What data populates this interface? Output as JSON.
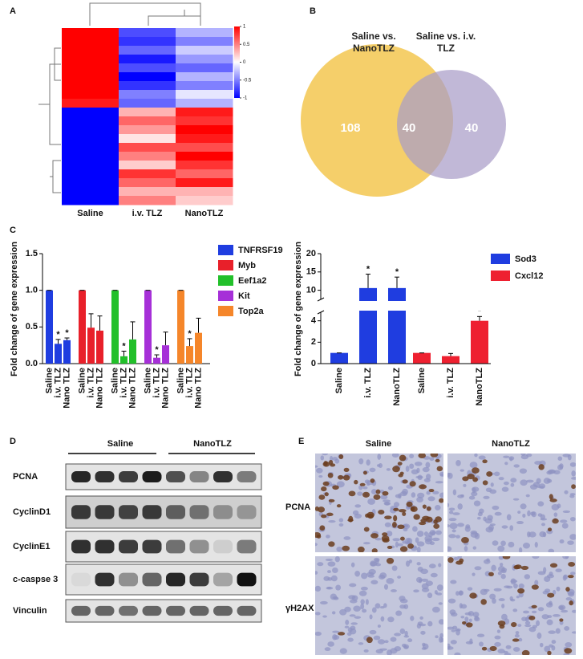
{
  "chart_data": [
    {
      "type": "heatmap",
      "panel": "A",
      "categories": [
        "Saline",
        "i.v. TLZ",
        "NanoTLZ"
      ],
      "rows": [
        [
          1,
          -0.7,
          -0.3
        ],
        [
          1,
          -0.8,
          -0.5
        ],
        [
          1,
          -0.6,
          -0.2
        ],
        [
          1,
          -0.9,
          -0.4
        ],
        [
          1,
          -0.7,
          -0.6
        ],
        [
          1,
          -1,
          -0.3
        ],
        [
          1,
          -0.8,
          -0.5
        ],
        [
          1,
          -0.5,
          -0.1
        ],
        [
          0.9,
          -0.6,
          -0.3
        ],
        [
          -1,
          0.3,
          0.9
        ],
        [
          -1,
          0.6,
          0.8
        ],
        [
          -1,
          0.4,
          1
        ],
        [
          -1,
          0.1,
          0.9
        ],
        [
          -1,
          0.7,
          0.7
        ],
        [
          -1,
          0.5,
          1
        ],
        [
          -1,
          0.2,
          0.8
        ],
        [
          -1,
          0.8,
          0.6
        ],
        [
          -1,
          0.6,
          0.9
        ],
        [
          -1,
          0.3,
          0.3
        ],
        [
          -1,
          0.5,
          0.2
        ]
      ],
      "clim": [
        -1,
        1
      ],
      "cticks": [
        1,
        0.5,
        0,
        -0.5,
        -1
      ],
      "colors": [
        "#0000ff",
        "#ffffff",
        "#ff0000"
      ]
    },
    {
      "type": "venn",
      "panel": "B",
      "sets": [
        {
          "name": "Saline vs. NanoTLZ",
          "color": "#f5cf6a"
        },
        {
          "name": "Saline vs. i.v. TLZ",
          "color": "#a99cc8"
        }
      ],
      "values": [
        108,
        40,
        40
      ]
    },
    {
      "type": "bar",
      "panel": "C",
      "ylabel": "Fold change of gene expression",
      "annotation": "*",
      "categories": [
        "Saline",
        "i.v. TLZ",
        "Nano TLZ"
      ],
      "ylim": [
        0,
        1.5
      ],
      "yticks": [
        {
          "value": 0,
          "label": "0.0"
        },
        {
          "value": 0.5,
          "label": "0.5"
        },
        {
          "value": 1,
          "label": "1.0"
        },
        {
          "value": 1.5,
          "label": "1.5"
        }
      ],
      "series": [
        {
          "name": "TNFRSF19",
          "color": "#1f3de0",
          "values": [
            1,
            0.27,
            0.32
          ],
          "errors": [
            0,
            0.06,
            0.03
          ],
          "significant": [
            false,
            true,
            true
          ]
        },
        {
          "name": "Myb",
          "color": "#e8202a",
          "values": [
            1,
            0.49,
            0.45
          ],
          "errors": [
            0,
            0.19,
            0.2
          ],
          "significant": [
            false,
            false,
            false
          ]
        },
        {
          "name": "Eef1a2",
          "color": "#22c02a",
          "values": [
            1,
            0.1,
            0.33
          ],
          "errors": [
            0,
            0.07,
            0.24
          ],
          "significant": [
            false,
            true,
            false
          ]
        },
        {
          "name": "Kit",
          "color": "#a630d8",
          "values": [
            1,
            0.08,
            0.25
          ],
          "errors": [
            0,
            0.04,
            0.18
          ],
          "significant": [
            false,
            true,
            false
          ]
        },
        {
          "name": "Top2a",
          "color": "#f5862a",
          "values": [
            1,
            0.24,
            0.42
          ],
          "errors": [
            0,
            0.1,
            0.2
          ],
          "significant": [
            false,
            true,
            false
          ]
        }
      ]
    },
    {
      "type": "broken-bar",
      "ylabel": "Fold change of gene expression",
      "annotation": "*",
      "categories": [
        "Saline",
        "i.v. TLZ",
        "NanoTLZ"
      ],
      "ylim": [
        0,
        20
      ],
      "ybreak": [
        4.8,
        7.5
      ],
      "yticks": [
        0,
        2,
        4,
        10,
        15,
        20
      ],
      "series": [
        {
          "name": "Sod3",
          "color": "#1f3de0",
          "values": [
            1,
            10.6,
            10.6
          ],
          "errors": [
            0,
            3.8,
            3
          ],
          "significant": [
            false,
            true,
            true
          ]
        },
        {
          "name": "Cxcl12",
          "color": "#ee2030",
          "values": [
            1,
            0.7,
            4
          ],
          "errors": [
            0,
            0.25,
            0.4
          ],
          "significant": [
            false,
            false,
            true
          ]
        }
      ]
    }
  ],
  "blot": {
    "panel": "D",
    "groups": [
      "Saline",
      "NanoTLZ"
    ],
    "rows": [
      {
        "label": "PCNA",
        "bands": [
          0.9,
          0.85,
          0.8,
          0.95,
          0.7,
          0.45,
          0.85,
          0.5
        ]
      },
      {
        "label": "CyclinD1",
        "bands": [
          0.8,
          0.8,
          0.75,
          0.8,
          0.6,
          0.5,
          0.35,
          0.3
        ]
      },
      {
        "label": "CyclinE1",
        "bands": [
          0.85,
          0.85,
          0.8,
          0.8,
          0.55,
          0.4,
          0.1,
          0.5
        ]
      },
      {
        "label": "c-caspse 3",
        "bands": [
          0.05,
          0.85,
          0.4,
          0.6,
          0.9,
          0.8,
          0.3,
          1
        ]
      },
      {
        "label": "Vinculin",
        "bands": [
          0.6,
          0.6,
          0.55,
          0.6,
          0.6,
          0.6,
          0.6,
          0.6
        ]
      }
    ]
  },
  "ihc": {
    "panel": "E",
    "columns": [
      "Saline",
      "NanoTLZ"
    ],
    "rows": [
      "PCNA",
      "γH2AX"
    ]
  }
}
